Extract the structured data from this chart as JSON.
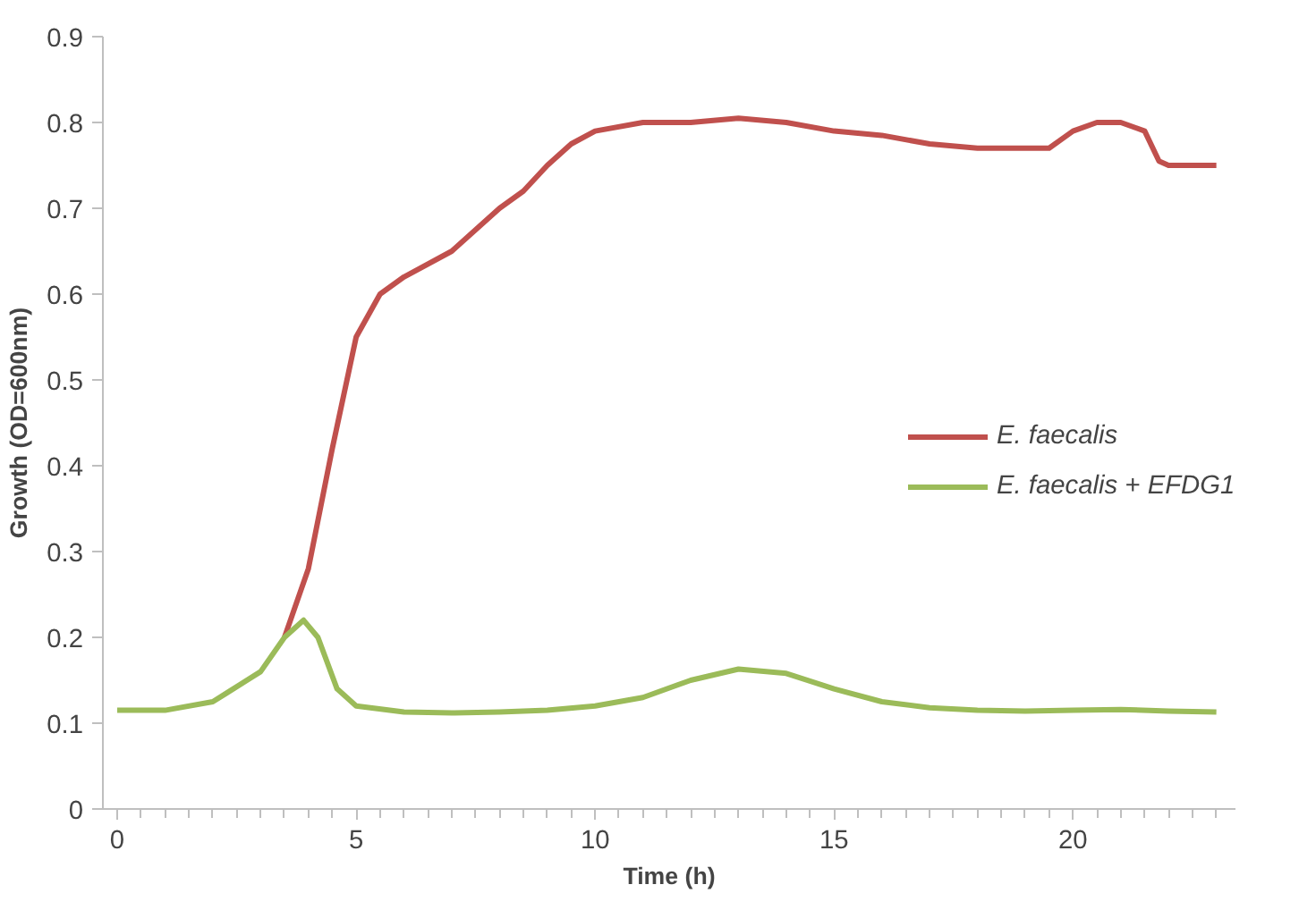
{
  "chart_data": {
    "type": "line",
    "xlabel": "Time (h)",
    "ylabel": "Growth (OD=600nm)",
    "xlim": [
      -0.3,
      23.4
    ],
    "ylim": [
      0,
      0.9
    ],
    "xticks": [
      0,
      5,
      10,
      15,
      20
    ],
    "yticks": [
      0,
      0.1,
      0.2,
      0.3,
      0.4,
      0.5,
      0.6,
      0.7,
      0.8,
      0.9
    ],
    "grid": false,
    "legend": "right",
    "marker": "none",
    "line_style": "solid",
    "series": [
      {
        "name": "E. faecalis",
        "color": "#c0504d",
        "x": [
          3.5,
          4,
          4.5,
          5,
          5.5,
          6,
          7,
          8,
          8.5,
          9,
          9.5,
          10,
          11,
          12,
          13,
          14,
          15,
          16,
          17,
          18,
          19,
          19.5,
          20,
          20.5,
          21,
          21.5,
          21.8,
          22,
          23
        ],
        "values": [
          0.2,
          0.28,
          0.42,
          0.55,
          0.6,
          0.62,
          0.65,
          0.7,
          0.72,
          0.75,
          0.775,
          0.79,
          0.8,
          0.8,
          0.805,
          0.8,
          0.79,
          0.785,
          0.775,
          0.77,
          0.77,
          0.77,
          0.79,
          0.8,
          0.8,
          0.79,
          0.755,
          0.75,
          0.75
        ]
      },
      {
        "name": "E. faecalis + EFDG1",
        "color": "#9bbb59",
        "x": [
          0,
          1,
          2,
          3,
          3.5,
          3.9,
          4.2,
          4.6,
          5,
          6,
          7,
          8,
          9,
          10,
          11,
          12,
          13,
          14,
          15,
          16,
          17,
          18,
          19,
          20,
          21,
          22,
          23
        ],
        "values": [
          0.115,
          0.115,
          0.125,
          0.16,
          0.2,
          0.22,
          0.2,
          0.14,
          0.12,
          0.113,
          0.112,
          0.113,
          0.115,
          0.12,
          0.13,
          0.15,
          0.163,
          0.158,
          0.14,
          0.125,
          0.118,
          0.115,
          0.114,
          0.115,
          0.116,
          0.114,
          0.113
        ]
      }
    ]
  }
}
